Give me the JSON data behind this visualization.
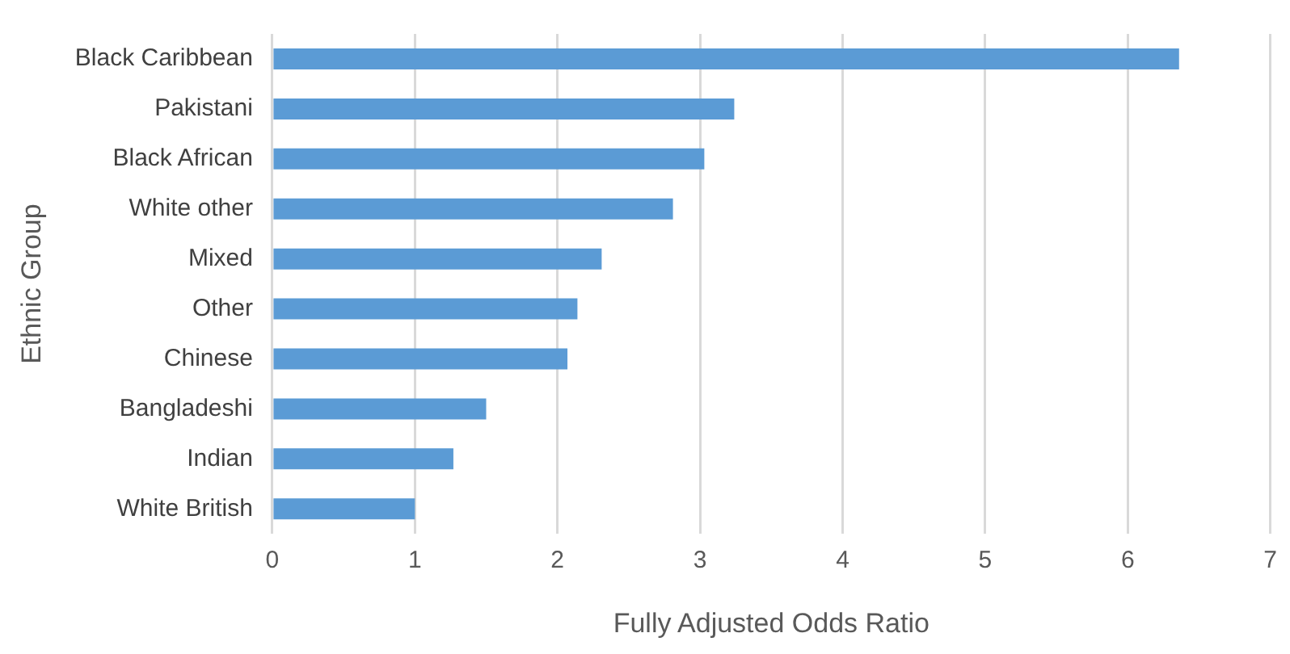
{
  "chart_data": {
    "type": "bar",
    "orientation": "horizontal",
    "xlabel": "Fully Adjusted Odds Ratio",
    "ylabel": "Ethnic Group",
    "categories": [
      "Black Caribbean",
      "Pakistani",
      "Black African",
      "White other",
      "Mixed",
      "Other",
      "Chinese",
      "Bangladeshi",
      "Indian",
      "White British"
    ],
    "values": [
      6.36,
      3.24,
      3.03,
      2.81,
      2.31,
      2.14,
      2.07,
      1.5,
      1.27,
      1.0
    ],
    "color": "#5b9bd5",
    "xlim": [
      0,
      7
    ],
    "xticks": [
      0,
      1,
      2,
      3,
      4,
      5,
      6,
      7
    ],
    "grid": "x",
    "legend": false
  }
}
